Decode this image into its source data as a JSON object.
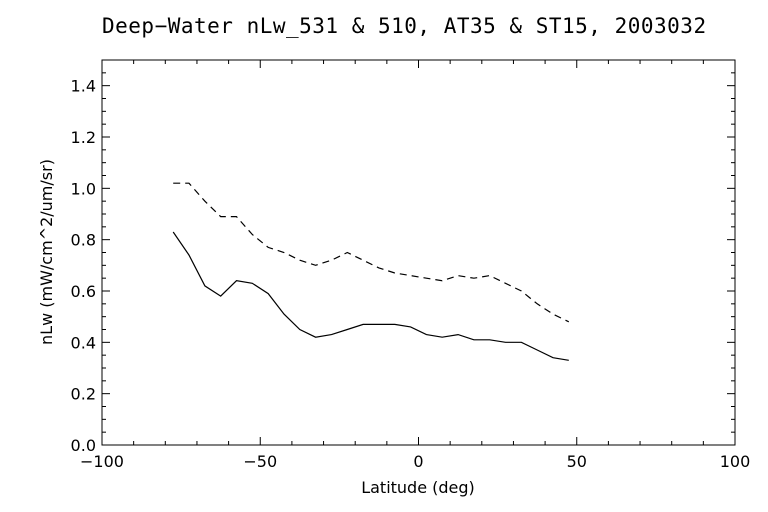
{
  "chart_data": {
    "type": "line",
    "title": "Deep−Water nLw_531 & 510, AT35 & ST15, 2003032",
    "xlabel": "Latitude (deg)",
    "ylabel": "nLw (mW/cm^2/um/sr)",
    "xlim": [
      -100,
      100
    ],
    "ylim": [
      0.0,
      1.5
    ],
    "x_ticks": [
      -100,
      -50,
      0,
      50,
      100
    ],
    "x_tick_labels": [
      "−100",
      "−50",
      "0",
      "50",
      "100"
    ],
    "y_ticks": [
      0.0,
      0.2,
      0.4,
      0.6,
      0.8,
      1.0,
      1.2,
      1.4
    ],
    "y_tick_labels": [
      "0.0",
      "0.2",
      "0.4",
      "0.6",
      "0.8",
      "1.0",
      "1.2",
      "1.4"
    ],
    "grid": false,
    "series": [
      {
        "line_style": "solid",
        "color": "#000000",
        "x": [
          -77.5,
          -72.5,
          -67.5,
          -62.5,
          -57.5,
          -52.5,
          -47.5,
          -42.5,
          -37.5,
          -32.5,
          -27.5,
          -22.5,
          -17.5,
          -12.5,
          -7.5,
          -2.5,
          2.5,
          7.5,
          12.5,
          17.5,
          22.5,
          27.5,
          32.5,
          37.5,
          42.5,
          47.5
        ],
        "y": [
          0.83,
          0.74,
          0.62,
          0.58,
          0.64,
          0.63,
          0.59,
          0.51,
          0.45,
          0.42,
          0.43,
          0.45,
          0.47,
          0.47,
          0.47,
          0.46,
          0.43,
          0.42,
          0.43,
          0.41,
          0.41,
          0.4,
          0.4,
          0.37,
          0.34,
          0.33
        ]
      },
      {
        "line_style": "dashed",
        "color": "#000000",
        "x": [
          -77.5,
          -72.5,
          -67.5,
          -62.5,
          -57.5,
          -52.5,
          -47.5,
          -42.5,
          -37.5,
          -32.5,
          -27.5,
          -22.5,
          -17.5,
          -12.5,
          -7.5,
          -2.5,
          2.5,
          7.5,
          12.5,
          17.5,
          22.5,
          27.5,
          32.5,
          37.5,
          42.5,
          47.5
        ],
        "y": [
          1.02,
          1.02,
          0.95,
          0.89,
          0.89,
          0.82,
          0.77,
          0.75,
          0.72,
          0.7,
          0.72,
          0.75,
          0.72,
          0.69,
          0.67,
          0.66,
          0.65,
          0.64,
          0.66,
          0.65,
          0.66,
          0.63,
          0.6,
          0.55,
          0.51,
          0.48
        ]
      }
    ]
  }
}
